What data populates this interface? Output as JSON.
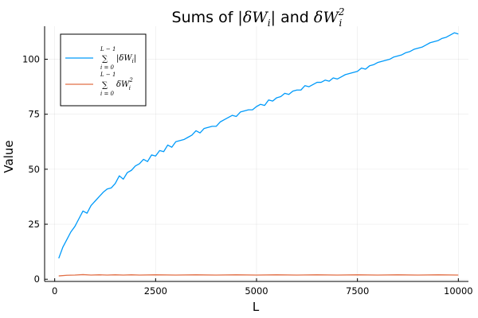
{
  "chart_data": {
    "type": "line",
    "title": {
      "prefix": "Sums of ",
      "part1": "|δW",
      "part1_sub": "i",
      "part1_end": "|",
      "joiner": "  and ",
      "part2": "δW",
      "part2_sub": "i",
      "part2_sup": "2"
    },
    "xlabel": "L",
    "ylabel": "Value",
    "xlim": [
      -250,
      10250
    ],
    "ylim": [
      -1,
      115
    ],
    "xticks": [
      0,
      2500,
      5000,
      7500,
      10000
    ],
    "yticks": [
      0,
      25,
      50,
      75,
      100
    ],
    "grid": true,
    "legend_position": "top-left",
    "legend": {
      "series1": {
        "sum_top": "L − 1",
        "sum_symbol": "∑",
        "sum_bottom": "i = 0",
        "term": "|δW",
        "term_sub": "i",
        "term_end": "|"
      },
      "series2": {
        "sum_top": "L − 1",
        "sum_symbol": "∑",
        "sum_bottom": "i = 0",
        "term": "δW",
        "term_sub": "i",
        "term_sup": "2"
      }
    },
    "series": [
      {
        "color": "#009AFA",
        "x": [
          100,
          200,
          300,
          400,
          500,
          600,
          700,
          800,
          900,
          1000,
          1100,
          1200,
          1300,
          1400,
          1500,
          1600,
          1700,
          1800,
          1900,
          2000,
          2100,
          2200,
          2300,
          2400,
          2500,
          2600,
          2700,
          2800,
          2900,
          3000,
          3100,
          3200,
          3300,
          3400,
          3500,
          3600,
          3700,
          3800,
          3900,
          4000,
          4100,
          4200,
          4300,
          4400,
          4500,
          4600,
          4700,
          4800,
          4900,
          5000,
          5100,
          5200,
          5300,
          5400,
          5500,
          5600,
          5700,
          5800,
          5900,
          6000,
          6100,
          6200,
          6300,
          6400,
          6500,
          6600,
          6700,
          6800,
          6900,
          7000,
          7100,
          7200,
          7300,
          7400,
          7500,
          7600,
          7700,
          7800,
          7900,
          8000,
          8100,
          8200,
          8300,
          8400,
          8500,
          8600,
          8700,
          8800,
          8900,
          9000,
          9100,
          9200,
          9300,
          9400,
          9500,
          9600,
          9700,
          9800,
          9900,
          10000
        ],
        "values": [
          9.5,
          14.5,
          18.0,
          21.5,
          24.0,
          27.5,
          31.0,
          30.0,
          33.5,
          35.5,
          37.5,
          39.5,
          41.0,
          41.5,
          43.5,
          47.0,
          45.5,
          48.5,
          49.5,
          51.5,
          52.5,
          54.5,
          53.5,
          56.5,
          56.0,
          58.5,
          58.0,
          61.0,
          60.0,
          62.5,
          63.0,
          63.5,
          64.5,
          65.5,
          67.5,
          66.5,
          68.5,
          69.0,
          69.5,
          69.5,
          71.5,
          72.5,
          73.5,
          74.5,
          74.0,
          76.0,
          76.5,
          77.0,
          77.0,
          78.5,
          79.5,
          79.0,
          81.5,
          81.0,
          82.5,
          83.0,
          84.5,
          84.0,
          85.5,
          86.0,
          86.0,
          88.0,
          87.5,
          88.5,
          89.5,
          89.5,
          90.5,
          90.0,
          91.5,
          91.0,
          92.0,
          93.0,
          93.5,
          94.0,
          94.5,
          96.0,
          95.5,
          97.0,
          97.5,
          98.5,
          99.0,
          99.5,
          100.0,
          101.0,
          101.5,
          102.0,
          103.0,
          103.5,
          104.5,
          105.0,
          105.5,
          106.5,
          107.5,
          108.0,
          108.5,
          109.5,
          110.0,
          111.0,
          112.0,
          111.5
        ]
      },
      {
        "color": "#E26F46",
        "x": [
          100,
          300,
          500,
          700,
          900,
          1100,
          1300,
          1500,
          1700,
          1900,
          2100,
          2500,
          3000,
          3500,
          4000,
          4500,
          5000,
          5500,
          6000,
          6500,
          7000,
          7500,
          8000,
          8500,
          9000,
          9500,
          10000
        ],
        "values": [
          1.5,
          1.8,
          1.9,
          2.1,
          1.9,
          2.0,
          1.9,
          2.0,
          1.9,
          2.0,
          1.9,
          2.0,
          1.9,
          2.0,
          1.9,
          2.0,
          1.9,
          2.0,
          1.9,
          2.0,
          1.9,
          2.0,
          1.9,
          2.0,
          1.9,
          2.0,
          1.9
        ]
      }
    ]
  }
}
